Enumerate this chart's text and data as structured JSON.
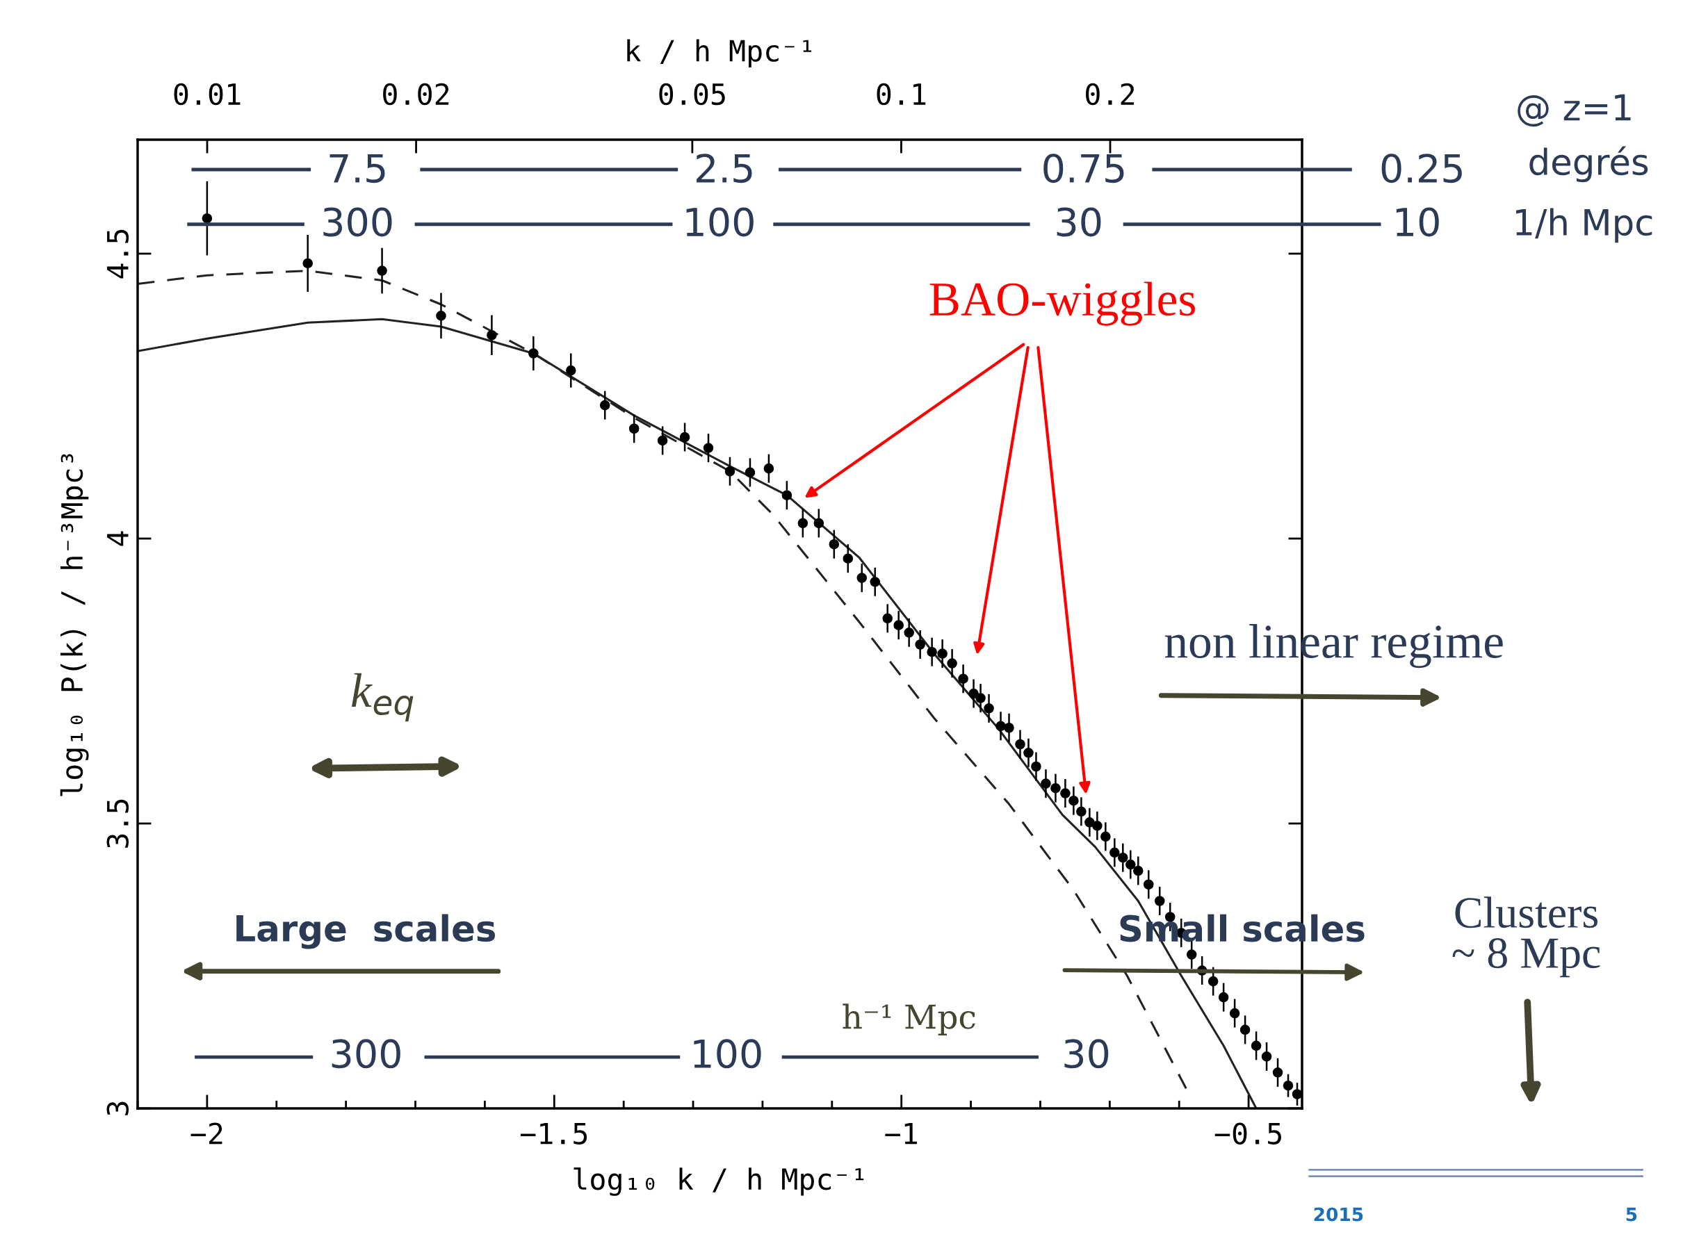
{
  "chart_data": {
    "type": "scatter",
    "xlabel": "log₁₀ k / h Mpc⁻¹",
    "ylabel": "log₁₀ P(k) / h⁻³Mpc³",
    "x2label": "k / h Mpc⁻¹",
    "log": "x2",
    "xlim": [
      -2.1,
      -0.423
    ],
    "ylim": [
      3,
      4.7
    ],
    "xticks": [
      {
        "value": -2,
        "label": "−2"
      },
      {
        "value": -1.5,
        "label": "−1.5"
      },
      {
        "value": -1,
        "label": "−1"
      },
      {
        "value": -0.5,
        "label": "−0.5"
      }
    ],
    "yticks": [
      3,
      3.5,
      4,
      4.5
    ],
    "x2lim": [
      0.00794,
      0.378
    ],
    "x2ticks": [
      0.01,
      0.02,
      0.05,
      0.1,
      0.2
    ],
    "grid": false,
    "legend": false,
    "series": [
      {
        "color": "#000000",
        "marker": "circle",
        "x": [
          -2.0,
          -1.855,
          -1.748,
          -1.663,
          -1.59,
          -1.53,
          -1.476,
          -1.427,
          -1.385,
          -1.344,
          -1.312,
          -1.278,
          -1.247,
          -1.218,
          -1.191,
          -1.165,
          -1.142,
          -1.119,
          -1.097,
          -1.077,
          -1.057,
          -1.038,
          -1.02,
          -1.004,
          -0.989,
          -0.973,
          -0.956,
          -0.941,
          -0.927,
          -0.911,
          -0.896,
          -0.886,
          -0.874,
          -0.857,
          -0.845,
          -0.829,
          -0.817,
          -0.806,
          -0.792,
          -0.778,
          -0.764,
          -0.752,
          -0.741,
          -0.729,
          -0.718,
          -0.706,
          -0.693,
          -0.681,
          -0.67,
          -0.659,
          -0.644,
          -0.628,
          -0.613,
          -0.597,
          -0.582,
          -0.567,
          -0.551,
          -0.536,
          -0.52,
          -0.505,
          -0.489,
          -0.474,
          -0.458,
          -0.443,
          -0.43
        ],
        "values": [
          4.562,
          4.483,
          4.47,
          4.391,
          4.357,
          4.325,
          4.295,
          4.234,
          4.193,
          4.172,
          4.178,
          4.159,
          4.118,
          4.116,
          4.123,
          4.076,
          4.027,
          4.027,
          3.99,
          3.965,
          3.931,
          3.924,
          3.86,
          3.848,
          3.835,
          3.814,
          3.801,
          3.798,
          3.781,
          3.754,
          3.728,
          3.72,
          3.702,
          3.671,
          3.668,
          3.639,
          3.624,
          3.6,
          3.57,
          3.562,
          3.553,
          3.54,
          3.521,
          3.502,
          3.496,
          3.477,
          3.449,
          3.44,
          3.428,
          3.417,
          3.393,
          3.364,
          3.336,
          3.308,
          3.27,
          3.242,
          3.223,
          3.195,
          3.167,
          3.138,
          3.11,
          3.091,
          3.063,
          3.04,
          3.025
        ],
        "errors": [
          0.065,
          0.05,
          0.04,
          0.04,
          0.035,
          0.03,
          0.03,
          0.025,
          0.025,
          0.025,
          0.025,
          0.025,
          0.025,
          0.025,
          0.025,
          0.025,
          0.025,
          0.025,
          0.025,
          0.025,
          0.025,
          0.025,
          0.025,
          0.025,
          0.025,
          0.025,
          0.025,
          0.025,
          0.025,
          0.025,
          0.025,
          0.025,
          0.025,
          0.025,
          0.025,
          0.025,
          0.025,
          0.025,
          0.025,
          0.025,
          0.025,
          0.025,
          0.025,
          0.025,
          0.025,
          0.025,
          0.025,
          0.025,
          0.025,
          0.025,
          0.025,
          0.025,
          0.025,
          0.025,
          0.025,
          0.025,
          0.025,
          0.025,
          0.025,
          0.025,
          0.025,
          0.025,
          0.025,
          0.02,
          0.02
        ]
      },
      {
        "type": "line",
        "color": "#222222",
        "line_style": "solid",
        "x": [
          -2.1,
          -2.0,
          -1.855,
          -1.748,
          -1.663,
          -1.53,
          -1.385,
          -1.247,
          -1.165,
          -1.061,
          -0.953,
          -0.86,
          -0.768,
          -0.721,
          -0.659,
          -0.597,
          -0.536,
          -0.489
        ],
        "values": [
          4.329,
          4.351,
          4.379,
          4.385,
          4.372,
          4.325,
          4.216,
          4.127,
          4.076,
          3.967,
          3.798,
          3.666,
          3.515,
          3.459,
          3.364,
          3.233,
          3.11,
          3.0
        ]
      },
      {
        "type": "line",
        "color": "#222222",
        "line_style": "dashed",
        "x": [
          -2.1,
          -2.0,
          -1.855,
          -1.748,
          -1.663,
          -1.53,
          -1.385,
          -1.247,
          -1.185,
          -1.061,
          -0.953,
          -0.845,
          -0.752,
          -0.675,
          -0.59
        ],
        "values": [
          4.447,
          4.462,
          4.47,
          4.453,
          4.411,
          4.325,
          4.212,
          4.118,
          4.042,
          3.854,
          3.685,
          3.534,
          3.383,
          3.233,
          3.035
        ]
      }
    ],
    "annotations": [
      "7.5",
      "2.5",
      "0.75",
      "0.25",
      "300",
      "100",
      "30",
      "10",
      "@ z=1",
      "degrés",
      "1/h Mpc",
      "BAO-wiggles",
      "non linear regime",
      "k$_{eq}$",
      "Large  scales",
      "Small scales",
      "Clusters\n~ 8 Mpc",
      "h⁻¹ Mpc",
      "300",
      "100",
      "30",
      "2015",
      "5"
    ]
  }
}
